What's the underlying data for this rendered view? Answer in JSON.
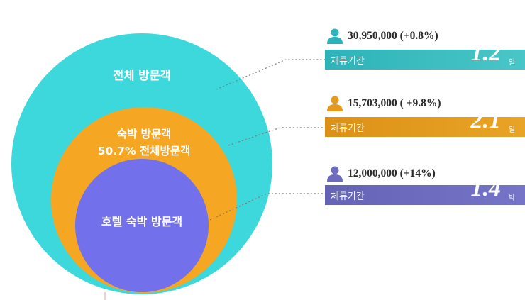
{
  "circles": {
    "outer_label": "전체 방문객",
    "middle_label_1": "숙박 방문객",
    "middle_label_2": "50.7% 전체방문객",
    "inner_label": "호텔 숙박 방문객"
  },
  "colors": {
    "outer": "#3dd8dc",
    "middle": "#f5a623",
    "inner": "#7370ec",
    "bar1": "#3bbcc0",
    "bar2": "#e39a1d",
    "bar3": "#6d6bbf",
    "connector": "#7a7a7a"
  },
  "stats": [
    {
      "icon": "person-icon",
      "count": "30,950,000 (+0.8%)",
      "bar_label": "체류기간",
      "value": "1.2",
      "unit": "일"
    },
    {
      "icon": "person-icon",
      "count": "15,703,000 ( +9.8%)",
      "bar_label": "체류기간",
      "value": "2.1",
      "unit": "일"
    },
    {
      "icon": "person-icon",
      "count": "12,000,000  (+14%)",
      "bar_label": "체류기간",
      "value": "1.4",
      "unit": "박"
    }
  ]
}
